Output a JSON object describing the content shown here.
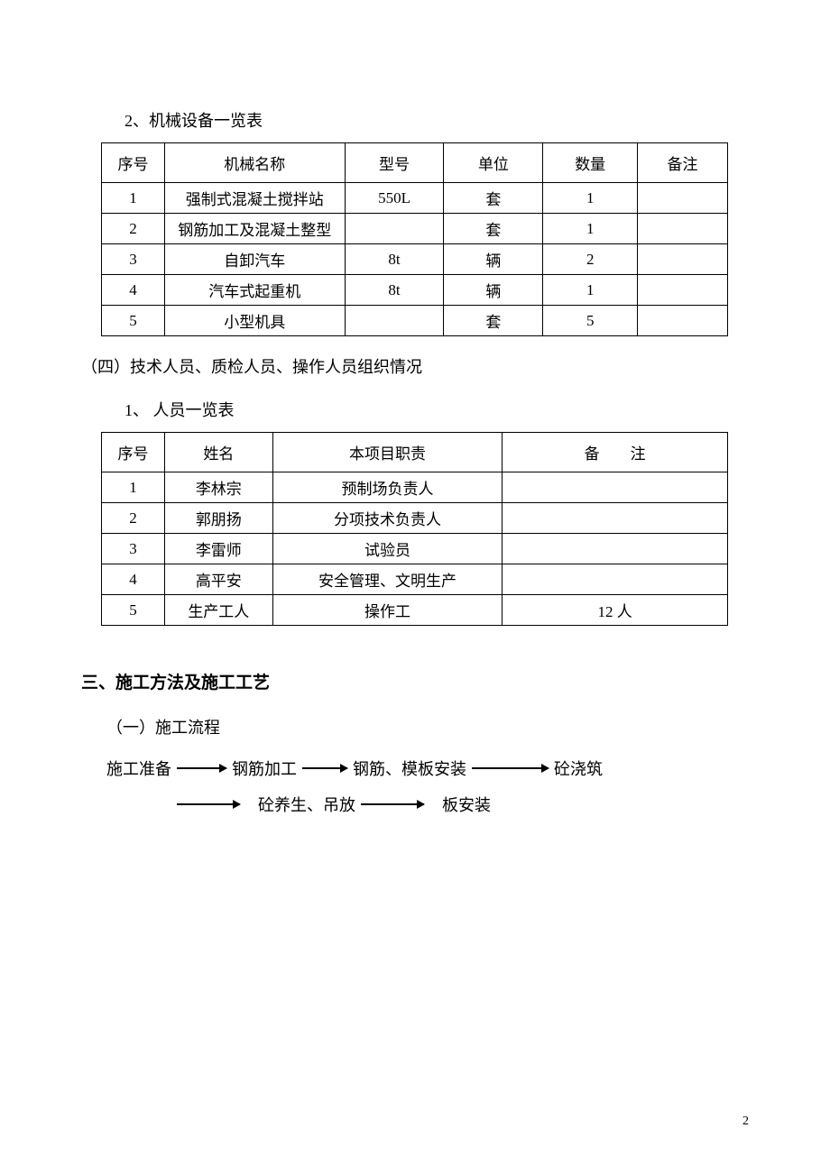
{
  "headings": {
    "h2_table1": "2、机械设备一览表",
    "section4": "（四）技术人员、质检人员、操作人员组织情况",
    "h2_table2": "1、 人员一览表",
    "h1_section3": "三、施工方法及施工工艺",
    "sub_flow": "（一）施工流程"
  },
  "table1": {
    "headers": [
      "序号",
      "机械名称",
      "型号",
      "单位",
      "数量",
      "备注"
    ],
    "rows": [
      [
        "1",
        "强制式混凝土搅拌站",
        "550L",
        "套",
        "1",
        ""
      ],
      [
        "2",
        "钢筋加工及混凝土整型",
        "",
        "套",
        "1",
        ""
      ],
      [
        "3",
        "自卸汽车",
        "8t",
        "辆",
        "2",
        ""
      ],
      [
        "4",
        "汽车式起重机",
        "8t",
        "辆",
        "1",
        ""
      ],
      [
        "5",
        "小型机具",
        "",
        "套",
        "5",
        ""
      ]
    ]
  },
  "table2": {
    "headers": [
      "序号",
      "姓名",
      "本项目职责",
      "备　　注"
    ],
    "rows": [
      [
        "1",
        "李林宗",
        "预制场负责人",
        ""
      ],
      [
        "2",
        "郭朋扬",
        "分项技术负责人",
        ""
      ],
      [
        "3",
        "李雷师",
        "试验员",
        ""
      ],
      [
        "4",
        "高平安",
        "安全管理、文明生产",
        ""
      ],
      [
        "5",
        "生产工人",
        "操作工",
        "12 人"
      ]
    ]
  },
  "flow": {
    "line1": [
      "施工准备",
      "钢筋加工",
      "钢筋、模板安装",
      "砼浇筑"
    ],
    "line2": [
      "砼养生、吊放",
      "板安装"
    ]
  },
  "page_number": "2",
  "styles": {
    "border_color": "#000000",
    "background": "#ffffff",
    "font_body": "SimSun",
    "font_size_body": 18,
    "font_size_table": 17,
    "arrow_color": "#000000"
  }
}
